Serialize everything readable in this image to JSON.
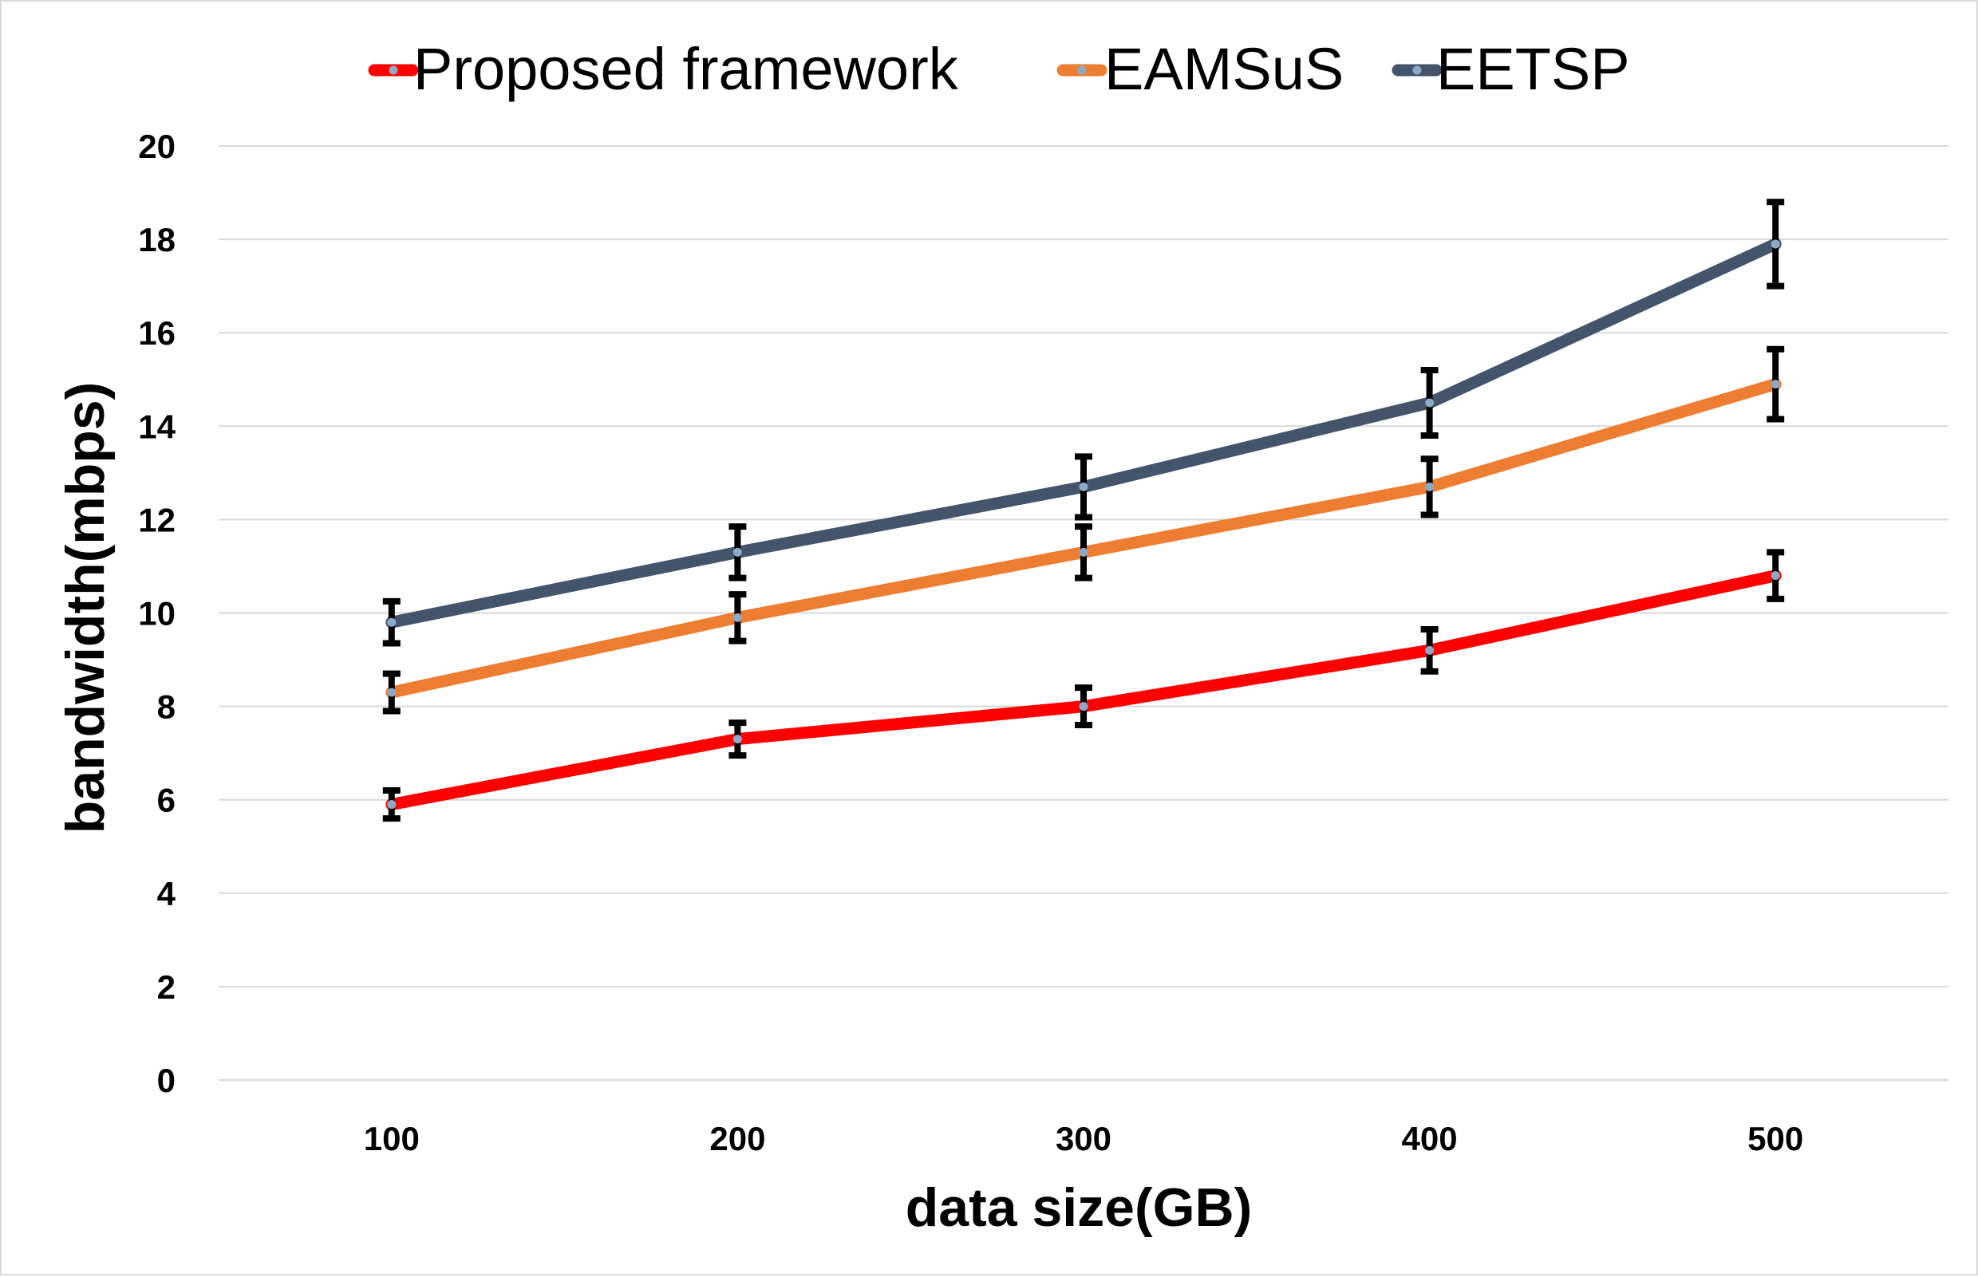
{
  "chart_data": {
    "type": "line",
    "title": "",
    "xlabel": "data size(GB)",
    "ylabel": "bandwidth(mbps)",
    "categories": [
      "100",
      "200",
      "300",
      "400",
      "500"
    ],
    "ylim": [
      0,
      20
    ],
    "yticks": [
      0,
      2,
      4,
      6,
      8,
      10,
      12,
      14,
      16,
      18,
      20
    ],
    "grid": true,
    "legend_position": "top",
    "series": [
      {
        "name": "Proposed framework",
        "color": "#ff0000",
        "values": [
          5.9,
          7.3,
          8.0,
          9.2,
          10.8
        ],
        "error": [
          0.3,
          0.35,
          0.4,
          0.45,
          0.5
        ]
      },
      {
        "name": "EAMSuS",
        "color": "#ed7d31",
        "values": [
          8.3,
          9.9,
          11.3,
          12.7,
          14.9
        ],
        "error": [
          0.4,
          0.5,
          0.55,
          0.6,
          0.75
        ]
      },
      {
        "name": "EETSP",
        "color": "#44546a",
        "values": [
          9.8,
          11.3,
          12.7,
          14.5,
          17.9
        ],
        "error": [
          0.45,
          0.55,
          0.65,
          0.7,
          0.9
        ]
      }
    ]
  }
}
